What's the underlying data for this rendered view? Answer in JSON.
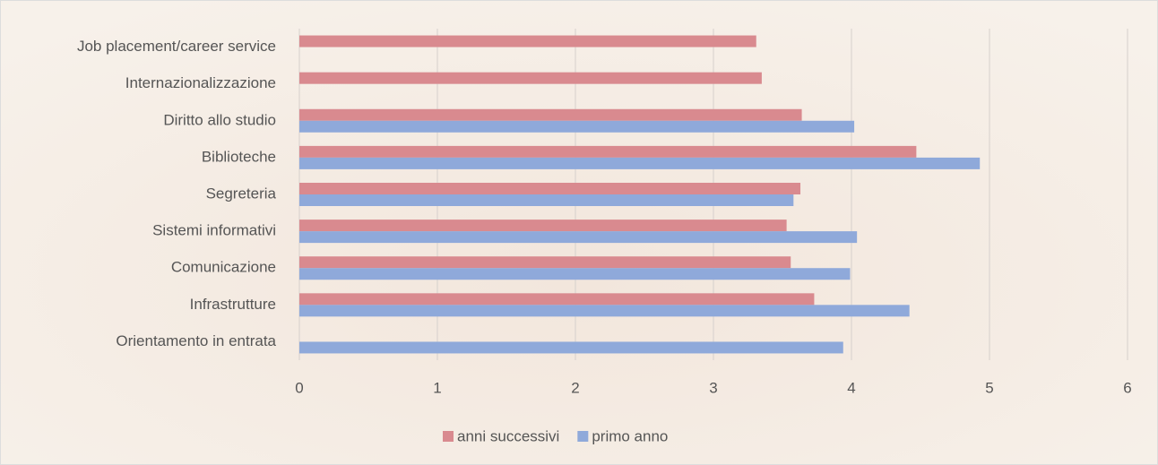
{
  "chart_data": {
    "type": "barh",
    "categories": [
      "Job placement/career service",
      "Internazionalizzazione",
      "Diritto allo studio",
      "Biblioteche",
      "Segreteria",
      "Sistemi informativi",
      "Comunicazione",
      "Infrastrutture",
      "Orientamento in entrata"
    ],
    "series": [
      {
        "name": "anni successivi",
        "color": "#d98a8f",
        "values": [
          3.31,
          3.35,
          3.64,
          4.47,
          3.63,
          3.53,
          3.56,
          3.73,
          null
        ]
      },
      {
        "name": "primo anno",
        "color": "#8fa9da",
        "values": [
          null,
          null,
          4.02,
          4.93,
          3.58,
          4.04,
          3.99,
          4.42,
          3.94
        ]
      }
    ],
    "xlim": [
      0,
      6
    ],
    "xticks": [
      0,
      1,
      2,
      3,
      4,
      5,
      6
    ],
    "grid": true,
    "legend": "bottom"
  }
}
